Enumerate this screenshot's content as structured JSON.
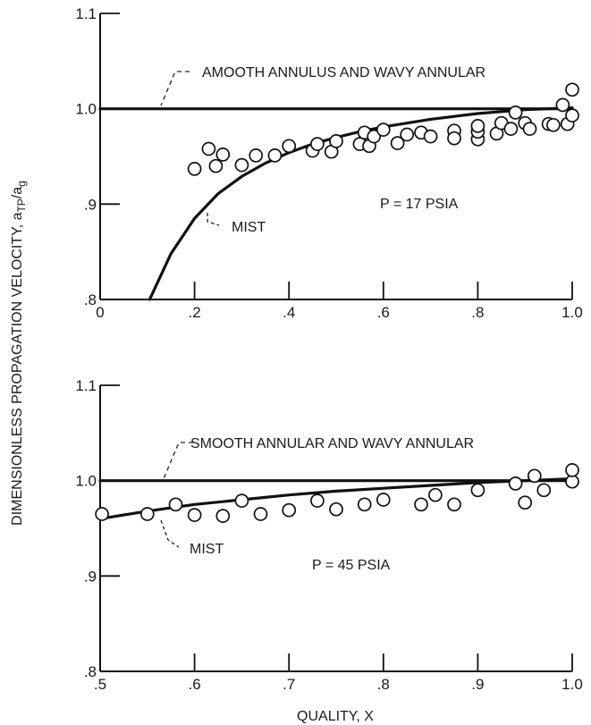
{
  "chart_data": [
    {
      "type": "line",
      "xlim": [
        0,
        1.0
      ],
      "ylim": [
        0.8,
        1.1
      ],
      "x_ticks": [
        0,
        0.2,
        0.4,
        0.6,
        0.8,
        1.0
      ],
      "x_tick_labels": [
        "0",
        ".2",
        ".4",
        ".6",
        ".8",
        "1.0"
      ],
      "y_ticks": [
        0.8,
        0.9,
        1.0,
        1.1
      ],
      "y_tick_labels": [
        ".8",
        ".9",
        "1.0",
        "1.1"
      ],
      "grid": false,
      "pressure_label": "P = 17 PSIA",
      "series": [
        {
          "name": "AMOOTH ANNULUS AND WAVY ANNULAR",
          "kind": "line",
          "x": [
            0,
            0.2,
            0.4,
            0.6,
            0.8,
            1.0
          ],
          "y": [
            1.0,
            1.0,
            1.0,
            1.0,
            1.0,
            1.0
          ]
        },
        {
          "name": "MIST",
          "kind": "line",
          "x": [
            0.105,
            0.15,
            0.2,
            0.25,
            0.3,
            0.35,
            0.4,
            0.45,
            0.5,
            0.55,
            0.6,
            0.7,
            0.8,
            0.9,
            1.0
          ],
          "y": [
            0.8,
            0.848,
            0.885,
            0.911,
            0.929,
            0.943,
            0.954,
            0.963,
            0.97,
            0.976,
            0.981,
            0.989,
            0.995,
            0.999,
            1.001
          ]
        },
        {
          "kind": "scatter",
          "x": [
            0.2,
            0.23,
            0.245,
            0.26,
            0.3,
            0.33,
            0.37,
            0.4,
            0.45,
            0.46,
            0.49,
            0.5,
            0.55,
            0.56,
            0.57,
            0.58,
            0.6,
            0.63,
            0.65,
            0.68,
            0.7,
            0.75,
            0.75,
            0.8,
            0.8,
            0.8,
            0.84,
            0.85,
            0.87,
            0.88,
            0.9,
            0.91,
            0.95,
            0.96,
            0.98,
            0.99,
            1.0,
            1.0
          ],
          "y": [
            0.937,
            0.958,
            0.94,
            0.952,
            0.941,
            0.951,
            0.951,
            0.961,
            0.956,
            0.963,
            0.955,
            0.966,
            0.963,
            0.975,
            0.961,
            0.971,
            0.978,
            0.964,
            0.973,
            0.975,
            0.971,
            0.977,
            0.969,
            0.968,
            0.976,
            0.982,
            0.974,
            0.985,
            0.979,
            0.996,
            0.985,
            0.979,
            0.984,
            0.983,
            1.004,
            0.984,
            0.993,
            1.02
          ]
        }
      ],
      "annotations": [
        {
          "text": "AMOOTH ANNULUS AND WAVY ANNULAR",
          "target": [
            0.17,
            1.0
          ]
        },
        {
          "text": "MIST",
          "target": [
            0.42,
            0.955
          ]
        }
      ]
    },
    {
      "type": "line",
      "xlim": [
        0.5,
        1.0
      ],
      "ylim": [
        0.8,
        1.1
      ],
      "x_ticks": [
        0.5,
        0.6,
        0.7,
        0.8,
        0.9,
        1.0
      ],
      "x_tick_labels": [
        ".5",
        ".6",
        ".7",
        ".8",
        ".9",
        "1.0"
      ],
      "y_ticks": [
        0.8,
        0.9,
        1.0,
        1.1
      ],
      "y_tick_labels": [
        ".8",
        ".9",
        "1.0",
        "1.1"
      ],
      "xlabel": "QUALITY, X",
      "grid": false,
      "pressure_label": "P = 45 PSIA",
      "series": [
        {
          "name": "SMOOTH ANNULAR AND WAVY ANNULAR",
          "kind": "line",
          "x": [
            0.5,
            0.6,
            0.7,
            0.8,
            0.9,
            1.0
          ],
          "y": [
            1.0,
            1.0,
            1.0,
            1.0,
            1.0,
            1.0
          ]
        },
        {
          "name": "MIST",
          "kind": "line",
          "x": [
            0.5,
            0.55,
            0.6,
            0.65,
            0.7,
            0.75,
            0.8,
            0.85,
            0.9,
            0.95,
            1.0
          ],
          "y": [
            0.96,
            0.968,
            0.975,
            0.98,
            0.985,
            0.989,
            0.992,
            0.995,
            0.998,
            1.0,
            1.002
          ]
        },
        {
          "kind": "scatter",
          "x": [
            0.502,
            0.55,
            0.58,
            0.6,
            0.63,
            0.65,
            0.67,
            0.7,
            0.73,
            0.75,
            0.78,
            0.8,
            0.84,
            0.855,
            0.875,
            0.9,
            0.94,
            0.95,
            0.96,
            0.97,
            1.0,
            1.0
          ],
          "y": [
            0.965,
            0.965,
            0.975,
            0.964,
            0.963,
            0.979,
            0.965,
            0.969,
            0.979,
            0.97,
            0.975,
            0.98,
            0.975,
            0.985,
            0.975,
            0.99,
            0.997,
            0.977,
            1.005,
            0.99,
            0.999,
            1.011
          ]
        }
      ],
      "annotations": [
        {
          "text": "SMOOTH ANNULAR AND WAVY ANNULAR",
          "target": [
            0.62,
            1.0
          ]
        },
        {
          "text": "MIST",
          "target": [
            0.57,
            0.967
          ]
        }
      ]
    }
  ],
  "ylabel": "DIMENSIONLESS PROPAGATION VELOCITY, a",
  "ylabel_sub1": "TP",
  "ylabel_mid": "/a",
  "ylabel_sub2": "g"
}
